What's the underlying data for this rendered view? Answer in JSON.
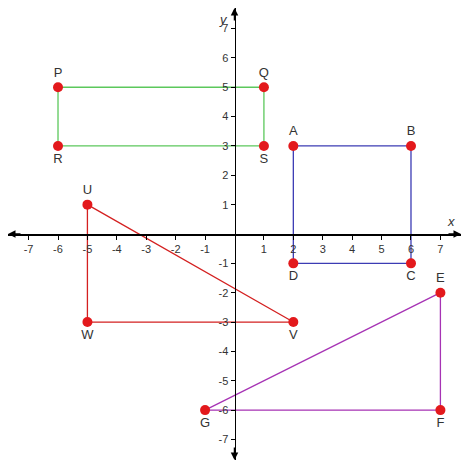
{
  "chart_data": {
    "type": "scatter",
    "xlabel": "x",
    "ylabel": "y",
    "xlim": [
      -7.7,
      7.7
    ],
    "ylim": [
      -7.7,
      7.7
    ],
    "xticks": [
      -7,
      -6,
      -5,
      -4,
      -3,
      -2,
      -1,
      1,
      2,
      3,
      4,
      5,
      6,
      7
    ],
    "yticks": [
      -7,
      -6,
      -5,
      -4,
      -3,
      -2,
      -1,
      1,
      2,
      3,
      4,
      5,
      6,
      7
    ],
    "grid": false,
    "color": "#e3191c",
    "marker": "circle",
    "line_style": "solid",
    "series": [
      {
        "color": "#5cc85c",
        "labels": [
          "P",
          "Q",
          "S",
          "R"
        ],
        "x": [
          -6,
          1,
          1,
          -6
        ],
        "values": [
          5,
          5,
          3,
          3
        ]
      },
      {
        "color": "#3c3cb4",
        "labels": [
          "A",
          "B",
          "C",
          "D"
        ],
        "x": [
          2,
          6,
          6,
          2
        ],
        "values": [
          3,
          3,
          -1,
          -1
        ]
      },
      {
        "color": "#d42020",
        "labels": [
          "U",
          "V",
          "W"
        ],
        "x": [
          -5,
          2,
          -5
        ],
        "values": [
          1,
          -3,
          -3
        ]
      },
      {
        "color": "#a632b4",
        "labels": [
          "E",
          "F",
          "G"
        ],
        "x": [
          7,
          7,
          -1
        ],
        "values": [
          -2,
          -6,
          -6
        ]
      }
    ]
  }
}
